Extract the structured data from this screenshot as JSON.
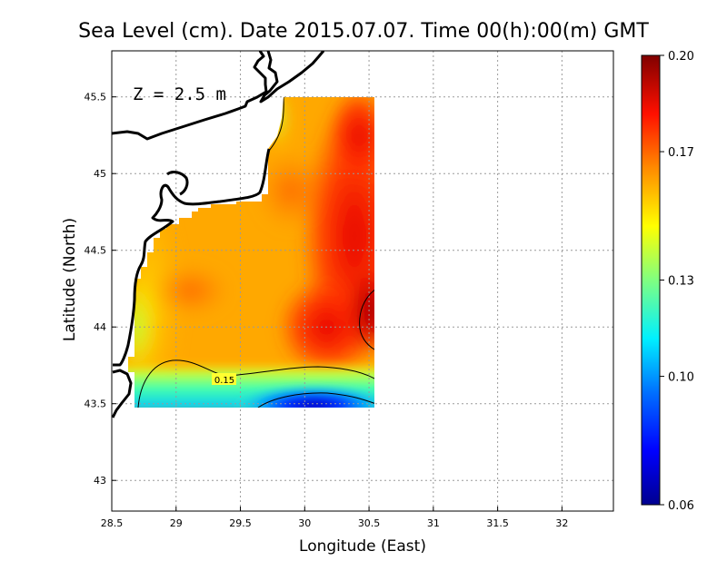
{
  "chart_data": {
    "type": "heatmap",
    "title": "Sea Level (cm). Date 2015.07.07. Time 00(h):00(m) GMT",
    "xlabel": "Longitude (East)",
    "ylabel": "Latitude (North)",
    "xlim": [
      28.5,
      32.4
    ],
    "ylim": [
      42.8,
      45.8
    ],
    "x_ticks": [
      28.5,
      29,
      29.5,
      30,
      30.5,
      31,
      31.5,
      32
    ],
    "x_tick_labels": [
      "28.5",
      "29",
      "29.5",
      "30",
      "30.5",
      "31",
      "31.5",
      "32"
    ],
    "y_ticks": [
      43,
      43.5,
      44,
      44.5,
      45,
      45.5
    ],
    "y_tick_labels": [
      "43",
      "43.5",
      "44",
      "44.5",
      "45",
      "45.5"
    ],
    "grid": true,
    "annotation": "Z = 2.5 m",
    "colorbar": {
      "range": [
        0.06,
        0.2
      ],
      "ticks": [
        0.06,
        0.1,
        0.13,
        0.17,
        0.2
      ],
      "tick_labels": [
        "0.06",
        "0.10",
        "0.13",
        "0.17",
        "0.20"
      ],
      "colormap": [
        "#00008f",
        "#0000ff",
        "#0080ff",
        "#00ffff",
        "#80ff80",
        "#ffff00",
        "#ff8000",
        "#ff0000",
        "#800000"
      ]
    },
    "data_region": {
      "lon": [
        28.65,
        30.55
      ],
      "lat": [
        43.48,
        45.5
      ]
    },
    "contours": [
      {
        "level": 0.15,
        "label": "0.15"
      }
    ],
    "field_samples": [
      {
        "lon": 28.75,
        "lat": 43.6,
        "value": 0.14
      },
      {
        "lon": 28.8,
        "lat": 44.0,
        "value": 0.15
      },
      {
        "lon": 29.0,
        "lat": 44.3,
        "value": 0.168
      },
      {
        "lon": 29.3,
        "lat": 44.25,
        "value": 0.172
      },
      {
        "lon": 29.5,
        "lat": 44.6,
        "value": 0.172
      },
      {
        "lon": 29.85,
        "lat": 44.85,
        "value": 0.178
      },
      {
        "lon": 29.85,
        "lat": 45.35,
        "value": 0.165
      },
      {
        "lon": 30.35,
        "lat": 45.1,
        "value": 0.182
      },
      {
        "lon": 30.4,
        "lat": 44.7,
        "value": 0.185
      },
      {
        "lon": 30.5,
        "lat": 44.1,
        "value": 0.196
      },
      {
        "lon": 30.0,
        "lat": 43.85,
        "value": 0.175
      },
      {
        "lon": 29.7,
        "lat": 43.65,
        "value": 0.13
      },
      {
        "lon": 30.0,
        "lat": 43.52,
        "value": 0.075
      },
      {
        "lon": 30.4,
        "lat": 43.55,
        "value": 0.09
      }
    ]
  }
}
